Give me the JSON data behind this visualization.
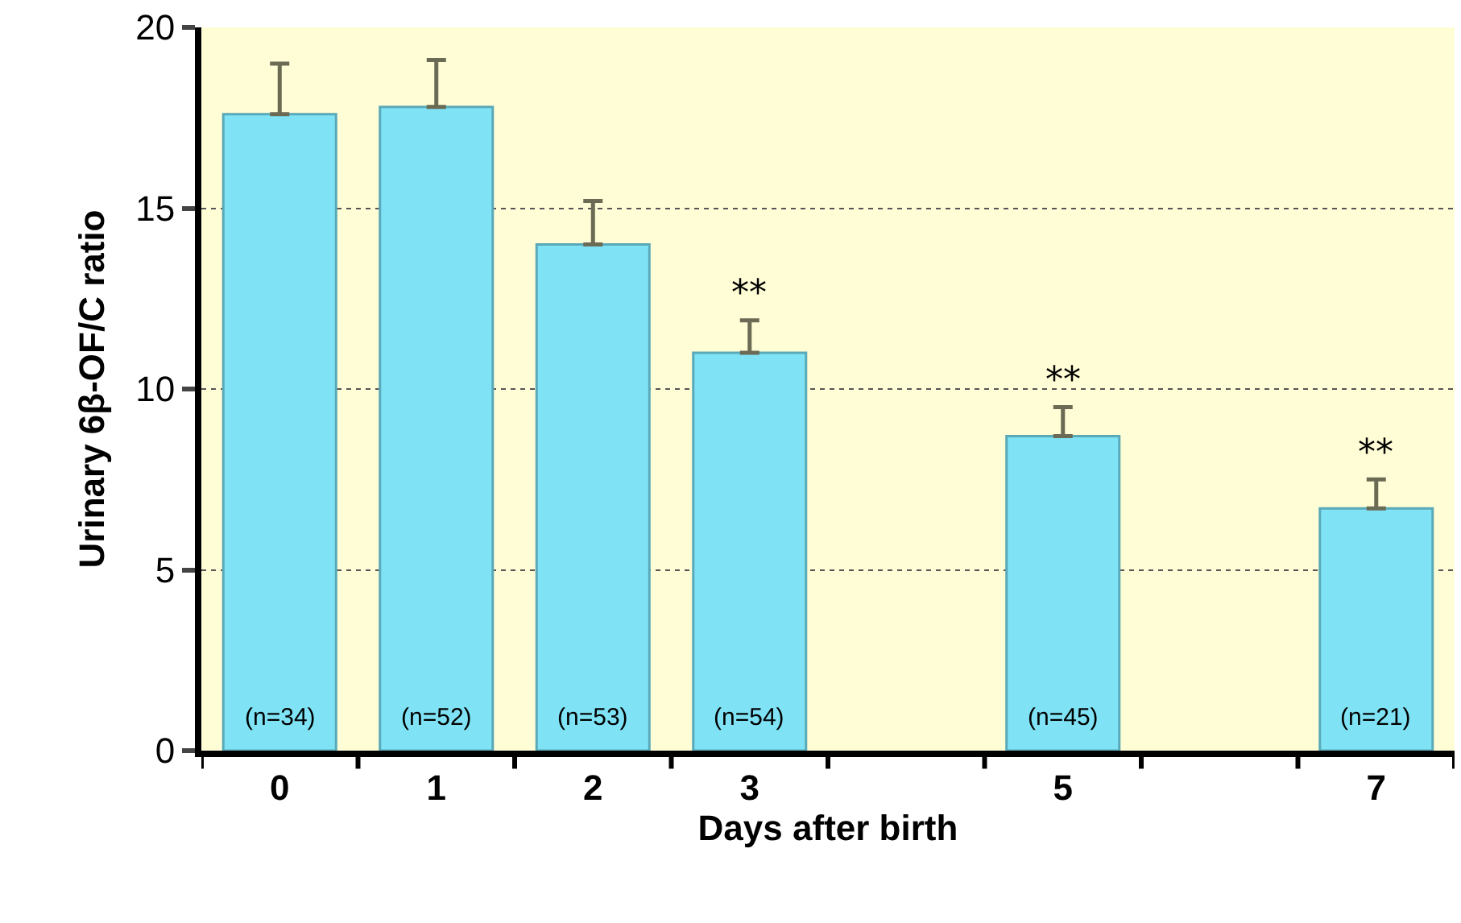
{
  "chart_data": {
    "type": "bar",
    "xlabel": "Days after birth",
    "ylabel": "Urinary 6β-OF/C ratio",
    "categories": [
      "0",
      "1",
      "2",
      "3",
      null,
      "5",
      null,
      "7"
    ],
    "values": [
      17.6,
      17.8,
      14.0,
      11.0,
      null,
      8.7,
      null,
      6.7
    ],
    "errors": [
      [
        17.6,
        19.0
      ],
      [
        17.8,
        19.1
      ],
      [
        14.0,
        15.2
      ],
      [
        11.0,
        11.9
      ],
      null,
      [
        8.7,
        9.5
      ],
      null,
      [
        6.7,
        7.5
      ]
    ],
    "color": "#7fe3f5",
    "ylim": [
      0,
      20
    ],
    "yticks": [
      0,
      5,
      10,
      15,
      20
    ],
    "grid": "y",
    "annotations": [
      {
        "text": "**",
        "x": "3",
        "y": 11.0
      },
      {
        "text": "**",
        "x": "5",
        "y": 8.7
      },
      {
        "text": "**",
        "x": "7",
        "y": 6.7
      },
      "(n=34)",
      "(n=52)",
      "(n=53)",
      "(n=54)",
      "(n=45)",
      "(n=21)"
    ]
  }
}
